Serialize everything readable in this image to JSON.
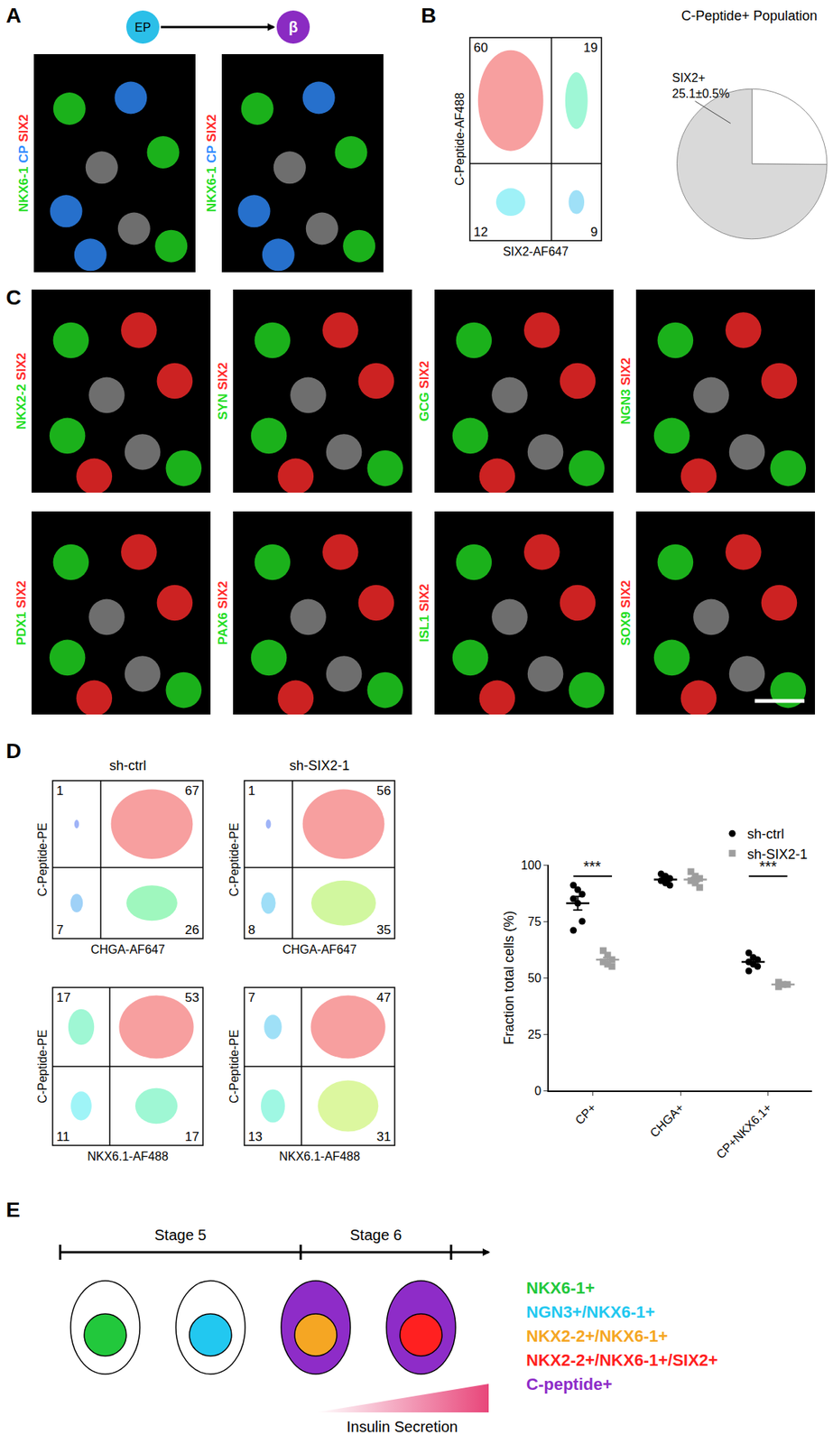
{
  "figure": {
    "panels": {
      "A": {
        "letter": "A",
        "transition": [
          {
            "label": "EP",
            "color": "#2bbfe8"
          },
          {
            "label": "β",
            "color": "#8a2bc2"
          }
        ],
        "images": [
          {
            "stains": [
              {
                "text": "NKX6-1",
                "color": "#22dd22"
              },
              {
                "text": "CP",
                "color": "#2f8cff"
              },
              {
                "text": "SIX2",
                "color": "#ff2a2a"
              }
            ]
          },
          {
            "stains": [
              {
                "text": "NKX6-1",
                "color": "#22dd22"
              },
              {
                "text": "CP",
                "color": "#2f8cff"
              },
              {
                "text": "SIX2",
                "color": "#ff2a2a"
              }
            ]
          }
        ]
      },
      "B": {
        "letter": "B",
        "flow": {
          "y_label": "C-Peptide-AF488",
          "x_label": "SIX2-AF647",
          "quadrants": {
            "upper_left": 60,
            "upper_right": 19,
            "lower_left": 12,
            "lower_right": 9
          }
        }
      },
      "C": {
        "letter": "C",
        "images": [
          {
            "stains": [
              {
                "text": "NKX2-2",
                "color": "#22dd22"
              },
              {
                "text": "SIX2",
                "color": "#ff2a2a"
              }
            ]
          },
          {
            "stains": [
              {
                "text": "SYN",
                "color": "#22dd22"
              },
              {
                "text": "SIX2",
                "color": "#ff2a2a"
              }
            ]
          },
          {
            "stains": [
              {
                "text": "GCG",
                "color": "#22dd22"
              },
              {
                "text": "SIX2",
                "color": "#ff2a2a"
              }
            ]
          },
          {
            "stains": [
              {
                "text": "NGN3",
                "color": "#22dd22"
              },
              {
                "text": "SIX2",
                "color": "#ff2a2a"
              }
            ]
          },
          {
            "stains": [
              {
                "text": "PDX1",
                "color": "#22dd22"
              },
              {
                "text": "SIX2",
                "color": "#ff2a2a"
              }
            ]
          },
          {
            "stains": [
              {
                "text": "PAX6",
                "color": "#22dd22"
              },
              {
                "text": "SIX2",
                "color": "#ff2a2a"
              }
            ]
          },
          {
            "stains": [
              {
                "text": "ISL1",
                "color": "#22dd22"
              },
              {
                "text": "SIX2",
                "color": "#ff2a2a"
              }
            ]
          },
          {
            "stains": [
              {
                "text": "SOX9",
                "color": "#22dd22"
              },
              {
                "text": "SIX2",
                "color": "#ff2a2a"
              }
            ]
          }
        ]
      },
      "D": {
        "letter": "D",
        "conditions": [
          "sh-ctrl",
          "sh-SIX2-1"
        ],
        "flow_rows": [
          {
            "y_label": "C-Peptide-PE",
            "x_label": "CHGA-AF647",
            "plots": [
              {
                "upper_left": 1,
                "upper_right": 67,
                "lower_left": 7,
                "lower_right": 26
              },
              {
                "upper_left": 1,
                "upper_right": 56,
                "lower_left": 8,
                "lower_right": 35
              }
            ]
          },
          {
            "y_label": "C-Peptide-PE",
            "x_label": "NKX6.1-AF488",
            "plots": [
              {
                "upper_left": 17,
                "upper_right": 53,
                "lower_left": 11,
                "lower_right": 17
              },
              {
                "upper_left": 7,
                "upper_right": 47,
                "lower_left": 13,
                "lower_right": 31
              }
            ]
          }
        ]
      },
      "E": {
        "letter": "E",
        "stages": [
          "Stage 5",
          "Stage 6"
        ],
        "cells": [
          {
            "cytoplasm": "#ffffff",
            "nucleus": "#22c83c"
          },
          {
            "cytoplasm": "#ffffff",
            "nucleus": "#22c8f0"
          },
          {
            "cytoplasm": "#8e2cc8",
            "nucleus": "#f5a623"
          },
          {
            "cytoplasm": "#8e2cc8",
            "nucleus": "#ff2020"
          }
        ],
        "legend": [
          {
            "text": "NKX6-1+",
            "color": "#22c83c"
          },
          {
            "text": "NGN3+/NKX6-1+",
            "color": "#22c8f0"
          },
          {
            "text": "NKX2-2+/NKX6-1+",
            "color": "#f5a623"
          },
          {
            "text": "NKX2-2+/NKX6-1+/SIX2+",
            "color": "#ff2020"
          },
          {
            "text": "C-peptide+",
            "color": "#8e2cc8"
          }
        ],
        "gradient_label": "Insulin Secretion",
        "gradient_color": "#e8467a"
      }
    }
  },
  "chart_data": [
    {
      "type": "pie",
      "title": "C-Peptide+ Population",
      "categories": [
        "SIX2+",
        null
      ],
      "values": [
        25.1,
        74.9
      ],
      "value_labels": [
        "25.1±0.5%",
        null
      ],
      "colors": [
        "#ffffff",
        "#d9d9d9"
      ]
    },
    {
      "type": "scatter",
      "categories": [
        "CP+",
        "CHGA+",
        "CP+NKX6.1+"
      ],
      "ylabel": "Fraction total cells (%)",
      "ylim": [
        0,
        100
      ],
      "yticks": [
        0,
        25,
        50,
        75,
        100
      ],
      "grid": false,
      "legend": "top right",
      "series": [
        {
          "name": "sh-ctrl",
          "color": "#000000",
          "marker": "circle",
          "values": [
            [
              91,
              89,
              87,
              85,
              83,
              75,
              71
            ],
            [
              96,
              95,
              94,
              93,
              92,
              91
            ],
            [
              61,
              59,
              58,
              57,
              56,
              55,
              53
            ]
          ],
          "mean": [
            83,
            93.5,
            57
          ],
          "sem": [
            3,
            0.8,
            0.9
          ]
        },
        {
          "name": "sh-SIX2-1",
          "color": "#9e9e9e",
          "marker": "square",
          "values": [
            [
              62,
              60,
              58,
              57,
              56,
              55
            ],
            [
              97,
              95,
              94,
              93,
              92,
              90
            ],
            [
              48,
              47,
              47,
              46
            ]
          ],
          "mean": [
            58,
            93.5,
            47
          ],
          "sem": [
            1,
            1,
            0.5
          ]
        }
      ],
      "annotations": [
        {
          "category": "CP+",
          "text": "***"
        },
        {
          "category": "CP+NKX6.1+",
          "text": "***"
        }
      ]
    }
  ]
}
